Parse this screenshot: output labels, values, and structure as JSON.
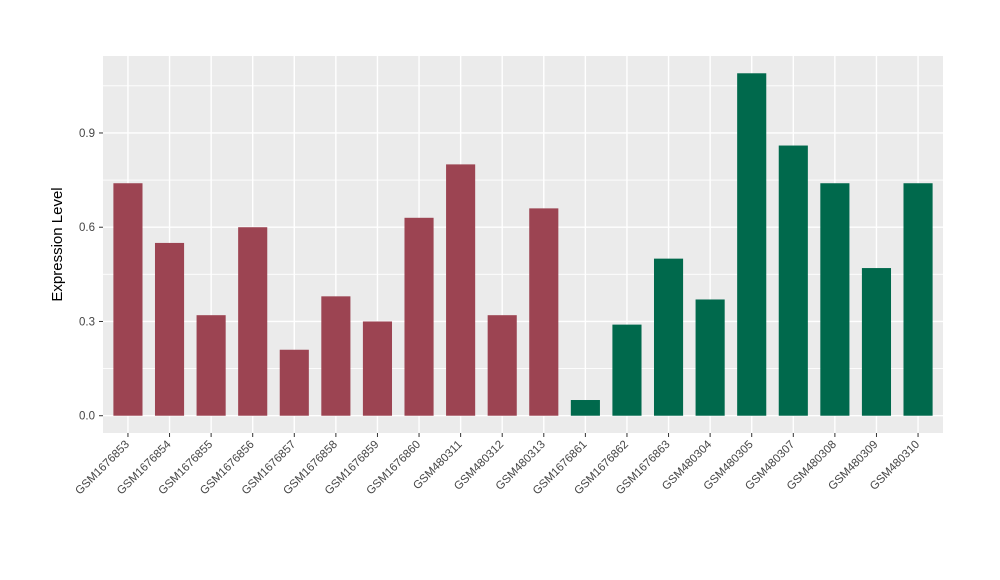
{
  "page": {
    "background_color": "#FFFFFF"
  },
  "chart_data": {
    "type": "bar",
    "title": "",
    "xlabel": "",
    "ylabel": "Expression Level",
    "categories": [
      "GSM1676853",
      "GSM1676854",
      "GSM1676855",
      "GSM1676856",
      "GSM1676857",
      "GSM1676858",
      "GSM1676859",
      "GSM1676860",
      "GSM480311",
      "GSM480312",
      "GSM480313",
      "GSM1676861",
      "GSM1676862",
      "GSM1676863",
      "GSM480304",
      "GSM480305",
      "GSM480307",
      "GSM480308",
      "GSM480309",
      "GSM480310"
    ],
    "values": [
      0.74,
      0.55,
      0.32,
      0.6,
      0.21,
      0.38,
      0.3,
      0.63,
      0.8,
      0.32,
      0.66,
      0.05,
      0.29,
      0.5,
      0.37,
      1.09,
      0.86,
      0.74,
      0.47,
      0.74
    ],
    "bar_colors": [
      "#9C4452",
      "#9C4452",
      "#9C4452",
      "#9C4452",
      "#9C4452",
      "#9C4452",
      "#9C4452",
      "#9C4452",
      "#9C4452",
      "#9C4452",
      "#9C4452",
      "#00694C",
      "#00694C",
      "#00694C",
      "#00694C",
      "#00694C",
      "#00694C",
      "#00694C",
      "#00694C",
      "#00694C"
    ],
    "group_colors": {
      "maroon_group": "#9C4452",
      "green_group": "#00694C"
    },
    "ylim": [
      -0.055,
      1.145
    ],
    "yticks": [
      0,
      0.3,
      0.6,
      0.9
    ],
    "ytick_labels": [
      "0.0",
      "0.3",
      "0.6",
      "0.9"
    ],
    "minor_yticks": [
      0.15,
      0.45,
      0.75,
      1.05
    ],
    "x_tick_angle": 45,
    "bar_width_fraction": 0.7,
    "legend_position": "none",
    "grid": "on",
    "panel_background": "#EBEBEB",
    "gridline_color": "#FFFFFF",
    "tick_mark_color": "#333333",
    "tick_label_color": "#454545",
    "axis_title_color": "#000000"
  }
}
